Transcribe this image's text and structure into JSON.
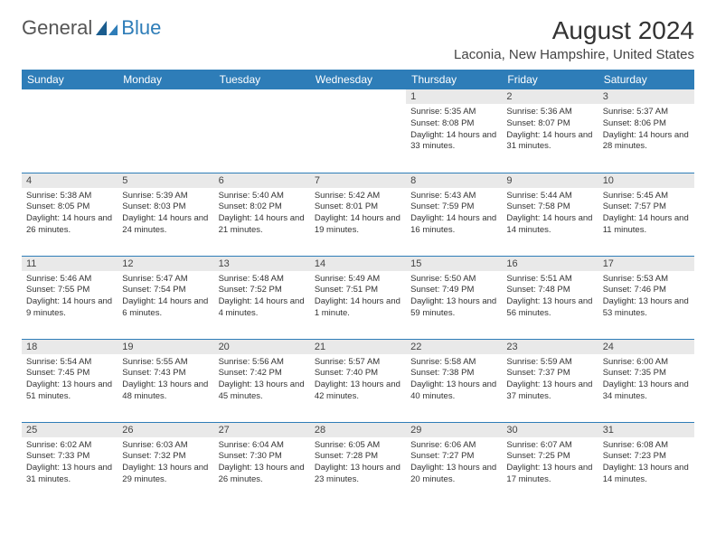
{
  "brand": {
    "part1": "General",
    "part2": "Blue",
    "logo_color": "#2e7db8"
  },
  "title": "August 2024",
  "location": "Laconia, New Hampshire, United States",
  "colors": {
    "header_bg": "#2e7db8",
    "header_fg": "#ffffff",
    "daynum_bg": "#e9e9e9",
    "rule": "#2e7db8",
    "text": "#333333"
  },
  "day_headers": [
    "Sunday",
    "Monday",
    "Tuesday",
    "Wednesday",
    "Thursday",
    "Friday",
    "Saturday"
  ],
  "weeks": [
    [
      null,
      null,
      null,
      null,
      {
        "n": "1",
        "sr": "5:35 AM",
        "ss": "8:08 PM",
        "dl": "14 hours and 33 minutes."
      },
      {
        "n": "2",
        "sr": "5:36 AM",
        "ss": "8:07 PM",
        "dl": "14 hours and 31 minutes."
      },
      {
        "n": "3",
        "sr": "5:37 AM",
        "ss": "8:06 PM",
        "dl": "14 hours and 28 minutes."
      }
    ],
    [
      {
        "n": "4",
        "sr": "5:38 AM",
        "ss": "8:05 PM",
        "dl": "14 hours and 26 minutes."
      },
      {
        "n": "5",
        "sr": "5:39 AM",
        "ss": "8:03 PM",
        "dl": "14 hours and 24 minutes."
      },
      {
        "n": "6",
        "sr": "5:40 AM",
        "ss": "8:02 PM",
        "dl": "14 hours and 21 minutes."
      },
      {
        "n": "7",
        "sr": "5:42 AM",
        "ss": "8:01 PM",
        "dl": "14 hours and 19 minutes."
      },
      {
        "n": "8",
        "sr": "5:43 AM",
        "ss": "7:59 PM",
        "dl": "14 hours and 16 minutes."
      },
      {
        "n": "9",
        "sr": "5:44 AM",
        "ss": "7:58 PM",
        "dl": "14 hours and 14 minutes."
      },
      {
        "n": "10",
        "sr": "5:45 AM",
        "ss": "7:57 PM",
        "dl": "14 hours and 11 minutes."
      }
    ],
    [
      {
        "n": "11",
        "sr": "5:46 AM",
        "ss": "7:55 PM",
        "dl": "14 hours and 9 minutes."
      },
      {
        "n": "12",
        "sr": "5:47 AM",
        "ss": "7:54 PM",
        "dl": "14 hours and 6 minutes."
      },
      {
        "n": "13",
        "sr": "5:48 AM",
        "ss": "7:52 PM",
        "dl": "14 hours and 4 minutes."
      },
      {
        "n": "14",
        "sr": "5:49 AM",
        "ss": "7:51 PM",
        "dl": "14 hours and 1 minute."
      },
      {
        "n": "15",
        "sr": "5:50 AM",
        "ss": "7:49 PM",
        "dl": "13 hours and 59 minutes."
      },
      {
        "n": "16",
        "sr": "5:51 AM",
        "ss": "7:48 PM",
        "dl": "13 hours and 56 minutes."
      },
      {
        "n": "17",
        "sr": "5:53 AM",
        "ss": "7:46 PM",
        "dl": "13 hours and 53 minutes."
      }
    ],
    [
      {
        "n": "18",
        "sr": "5:54 AM",
        "ss": "7:45 PM",
        "dl": "13 hours and 51 minutes."
      },
      {
        "n": "19",
        "sr": "5:55 AM",
        "ss": "7:43 PM",
        "dl": "13 hours and 48 minutes."
      },
      {
        "n": "20",
        "sr": "5:56 AM",
        "ss": "7:42 PM",
        "dl": "13 hours and 45 minutes."
      },
      {
        "n": "21",
        "sr": "5:57 AM",
        "ss": "7:40 PM",
        "dl": "13 hours and 42 minutes."
      },
      {
        "n": "22",
        "sr": "5:58 AM",
        "ss": "7:38 PM",
        "dl": "13 hours and 40 minutes."
      },
      {
        "n": "23",
        "sr": "5:59 AM",
        "ss": "7:37 PM",
        "dl": "13 hours and 37 minutes."
      },
      {
        "n": "24",
        "sr": "6:00 AM",
        "ss": "7:35 PM",
        "dl": "13 hours and 34 minutes."
      }
    ],
    [
      {
        "n": "25",
        "sr": "6:02 AM",
        "ss": "7:33 PM",
        "dl": "13 hours and 31 minutes."
      },
      {
        "n": "26",
        "sr": "6:03 AM",
        "ss": "7:32 PM",
        "dl": "13 hours and 29 minutes."
      },
      {
        "n": "27",
        "sr": "6:04 AM",
        "ss": "7:30 PM",
        "dl": "13 hours and 26 minutes."
      },
      {
        "n": "28",
        "sr": "6:05 AM",
        "ss": "7:28 PM",
        "dl": "13 hours and 23 minutes."
      },
      {
        "n": "29",
        "sr": "6:06 AM",
        "ss": "7:27 PM",
        "dl": "13 hours and 20 minutes."
      },
      {
        "n": "30",
        "sr": "6:07 AM",
        "ss": "7:25 PM",
        "dl": "13 hours and 17 minutes."
      },
      {
        "n": "31",
        "sr": "6:08 AM",
        "ss": "7:23 PM",
        "dl": "13 hours and 14 minutes."
      }
    ]
  ],
  "labels": {
    "sunrise": "Sunrise: ",
    "sunset": "Sunset: ",
    "daylight": "Daylight: "
  }
}
